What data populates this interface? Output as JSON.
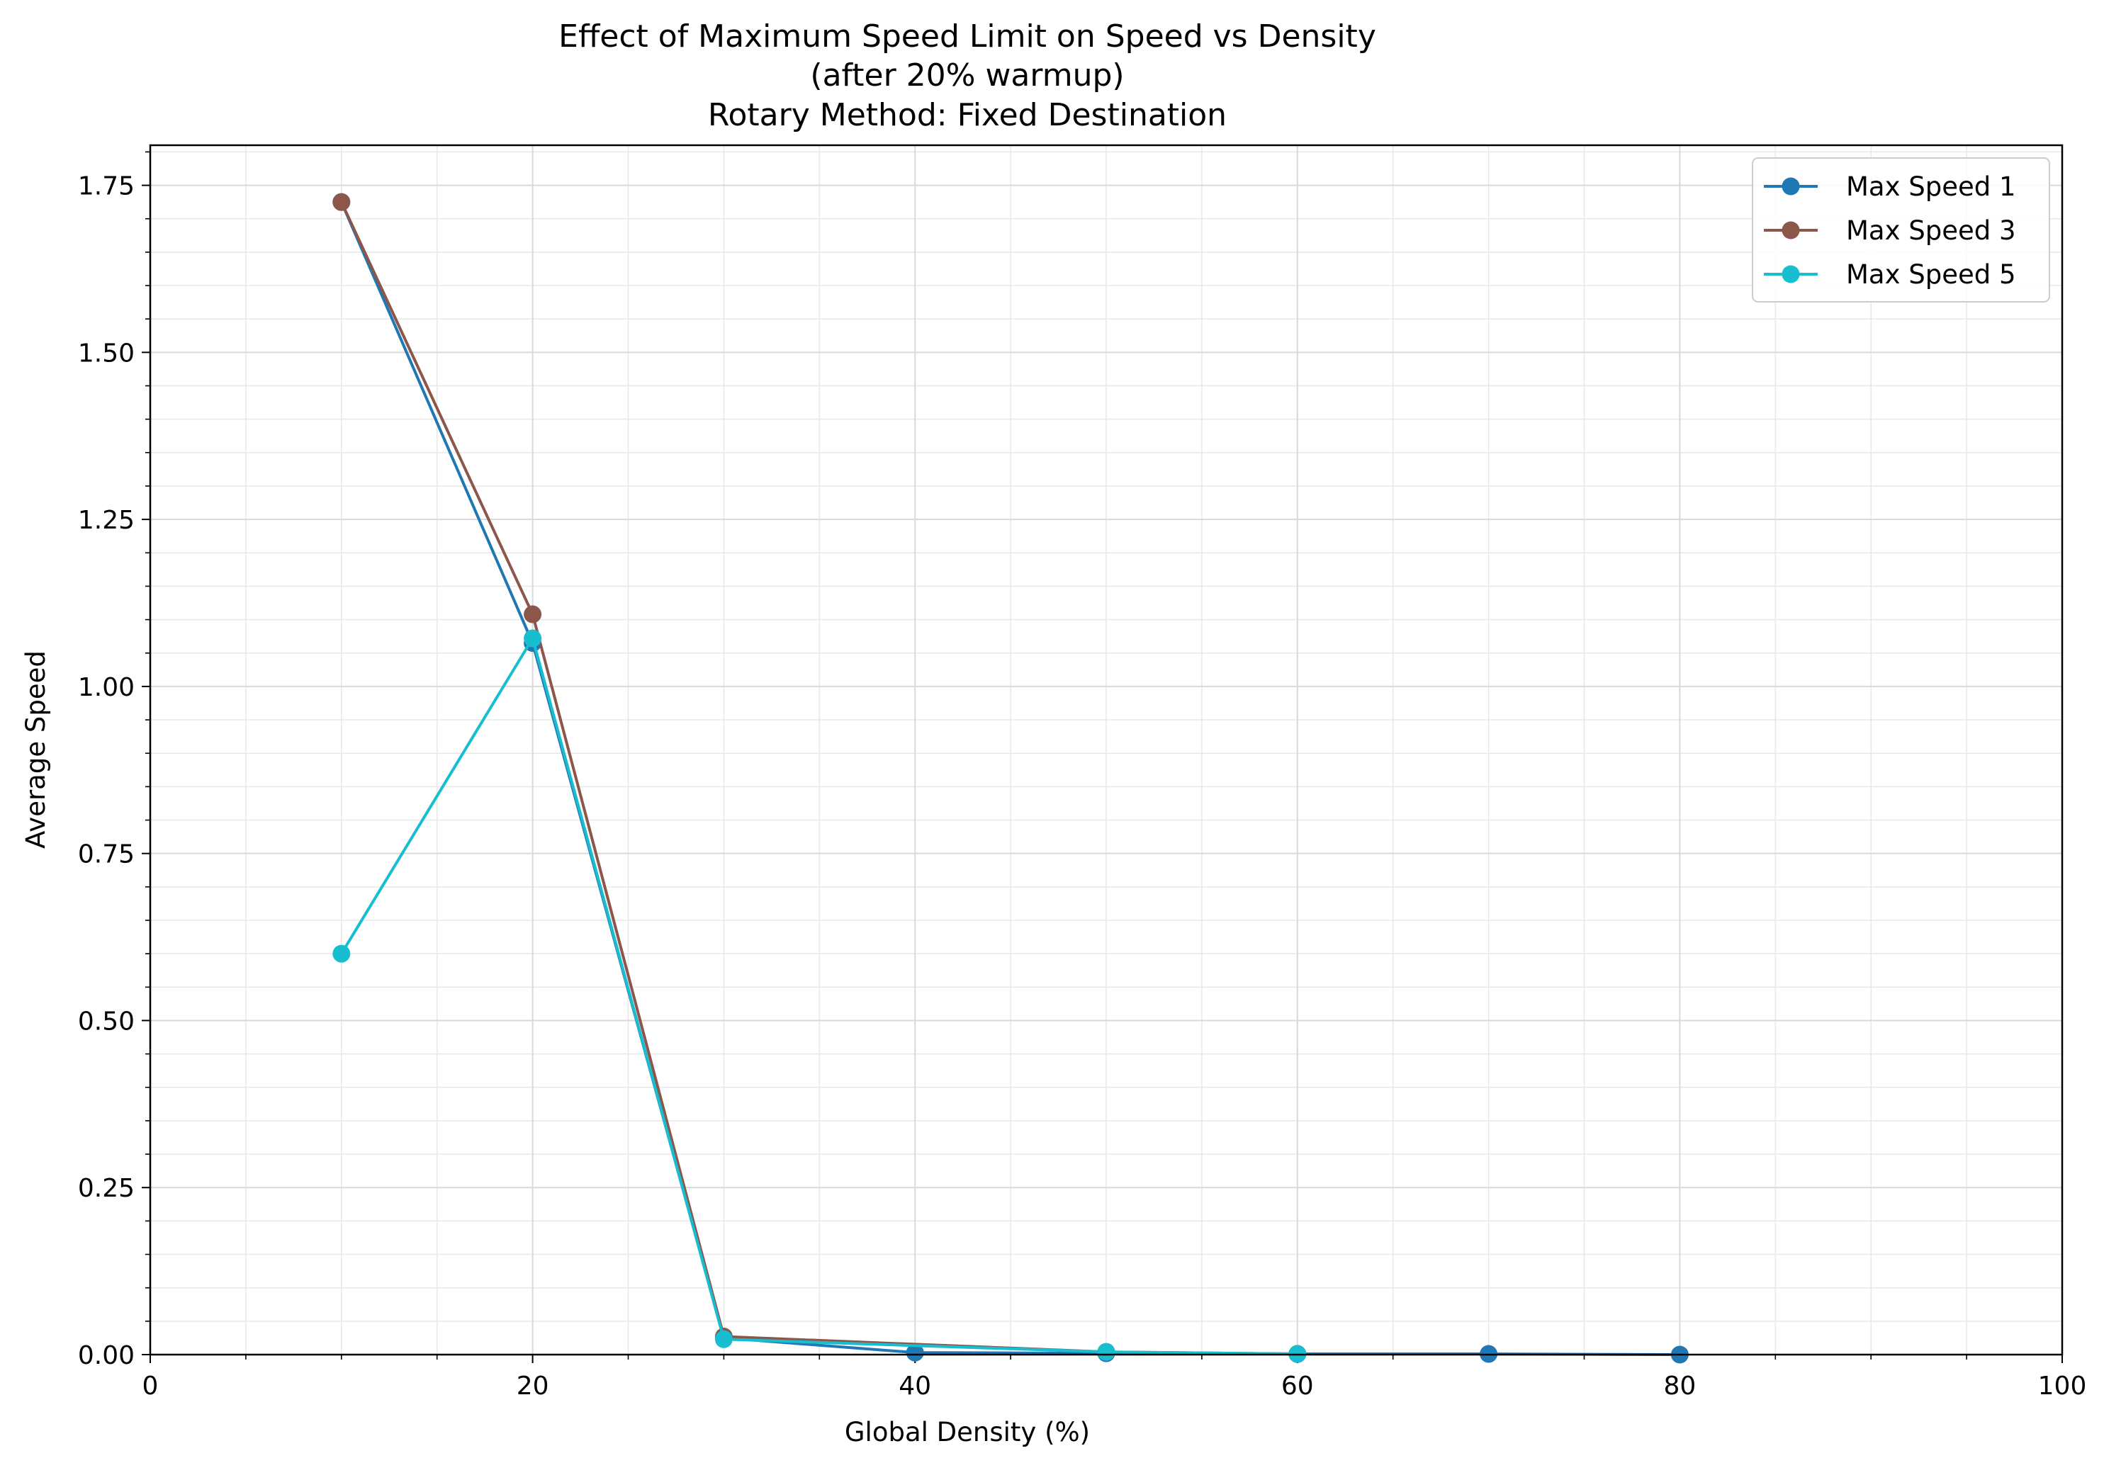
{
  "chart_data": {
    "type": "line",
    "title_lines": [
      "Effect of Maximum Speed Limit on Speed vs Density",
      "(after 20% warmup)",
      "Rotary Method: Fixed Destination"
    ],
    "xlabel": "Global Density (%)",
    "ylabel": "Average Speed",
    "xlim": [
      0,
      100
    ],
    "ylim": [
      0,
      1.81
    ],
    "x_ticks": [
      0,
      20,
      40,
      60,
      80,
      100
    ],
    "x_tick_labels": [
      "0",
      "20",
      "40",
      "60",
      "80",
      "100"
    ],
    "y_ticks": [
      0,
      0.25,
      0.5,
      0.75,
      1.0,
      1.25,
      1.5,
      1.75
    ],
    "y_tick_labels": [
      "0.00",
      "0.25",
      "0.50",
      "0.75",
      "1.00",
      "1.25",
      "1.50",
      "1.75"
    ],
    "x_minor_step": 5,
    "y_minor_step": 0.05,
    "grid": true,
    "legend_position": "top-right",
    "series": [
      {
        "name": "Max Speed 1",
        "color": "#1f77b4",
        "x": [
          10,
          20,
          30,
          40,
          50,
          60,
          70,
          80
        ],
        "y": [
          1.725,
          1.065,
          0.025,
          0.003,
          0.002,
          0.001,
          0.001,
          0.0
        ]
      },
      {
        "name": "Max Speed 3",
        "color": "#8c564b",
        "x": [
          10,
          20,
          30,
          50,
          60
        ],
        "y": [
          1.725,
          1.108,
          0.027,
          0.004,
          0.001
        ]
      },
      {
        "name": "Max Speed 5",
        "color": "#17becf",
        "x": [
          10,
          20,
          30,
          50,
          60
        ],
        "y": [
          0.6,
          1.072,
          0.023,
          0.004,
          0.001
        ]
      }
    ]
  }
}
